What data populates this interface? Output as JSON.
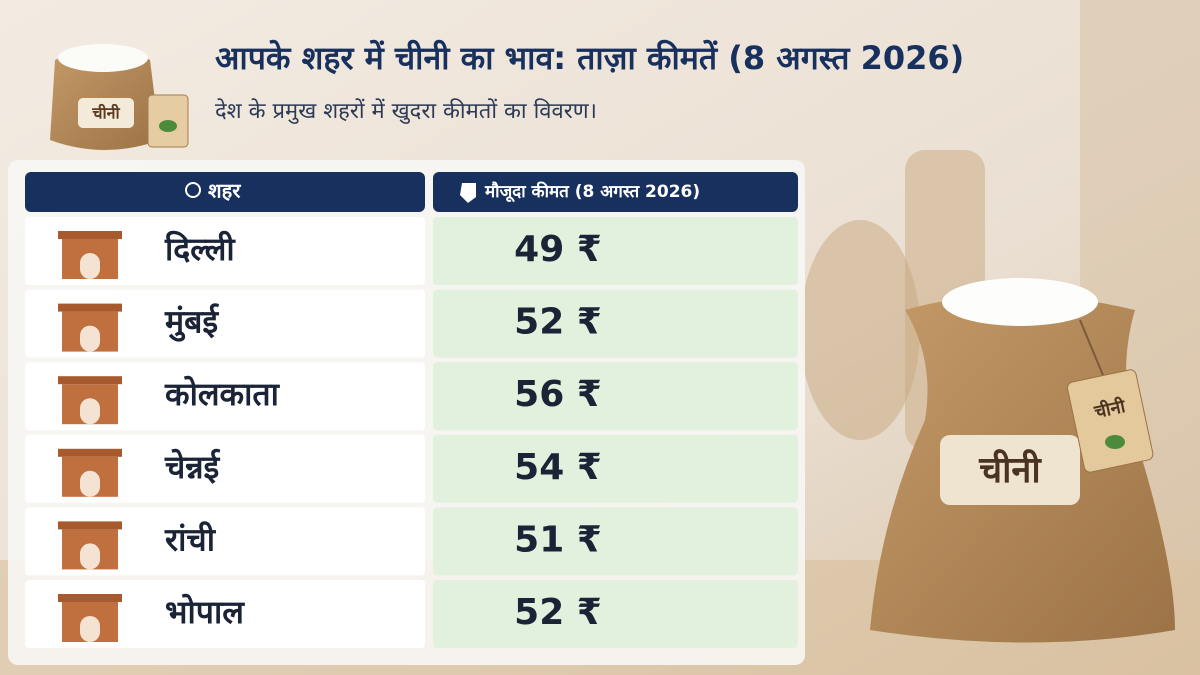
{
  "header": {
    "title": "आपके शहर में चीनी का भाव: ताज़ा कीमतें (8 अगस्त 2026)",
    "subtitle": "देश के प्रमुख शहरों में खुदरा कीमतों का विवरण।"
  },
  "logo": {
    "label": "चीनी"
  },
  "table": {
    "columns": [
      "शहर",
      "मौजूदा कीमत (8 अगस्त 2026)"
    ],
    "rows": [
      [
        "दिल्ली",
        "49 ₹"
      ],
      [
        "मुंबई",
        "52 ₹"
      ],
      [
        "कोलकाता",
        "56 ₹"
      ],
      [
        "चेन्नई",
        "54 ₹"
      ],
      [
        "रांची",
        "51 ₹"
      ],
      [
        "भोपाल",
        "52 ₹"
      ]
    ]
  },
  "bag": {
    "label": "चीनी",
    "tag_label": "चीनी"
  }
}
